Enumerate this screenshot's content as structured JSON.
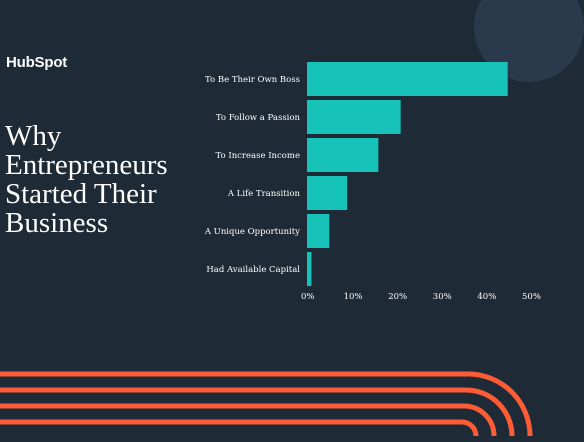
{
  "brand": {
    "logo_text": "HubSpot"
  },
  "title_lines": [
    "Why",
    "Entrepreneurs",
    "Started Their",
    "Business"
  ],
  "colors": {
    "background": "#1e2a36",
    "bar": "#17c3b9",
    "stripe": "#ff5c35",
    "circle": "#2a3a4c",
    "text": "#ffffff"
  },
  "chart_data": {
    "type": "bar",
    "orientation": "horizontal",
    "categories": [
      "To Be Their Own Boss",
      "To Follow a Passion",
      "To Increase Income",
      "A Life Transition",
      "A Unique Opportunity",
      "Had Available Capital"
    ],
    "values": [
      45,
      21,
      16,
      9,
      5,
      1
    ],
    "xlim": [
      0,
      50
    ],
    "x_ticks": [
      "0%",
      "10%",
      "20%",
      "30%",
      "40%",
      "50%"
    ],
    "grid": false,
    "title": "",
    "xlabel": "",
    "ylabel": ""
  }
}
